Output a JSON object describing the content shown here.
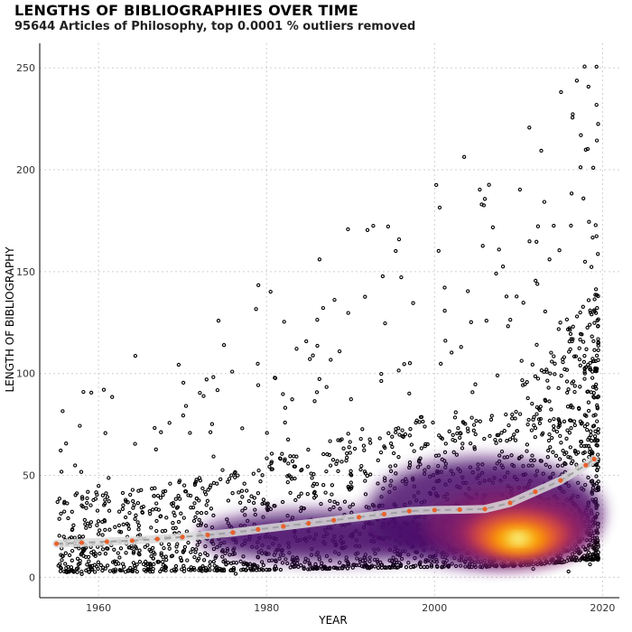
{
  "chart_data": {
    "type": "scatter",
    "title": "LENGTHS OF BIBLIOGRAPHIES OVER TIME",
    "subtitle": "95644 Articles of Philosophy, top 0.0001 % outliers removed",
    "xlabel": "YEAR",
    "ylabel": "LENGTH OF BIBLIOGRAPHY",
    "xlim": [
      1953,
      2022
    ],
    "ylim": [
      -10,
      262
    ],
    "x_ticks": [
      1960,
      1980,
      2000,
      2020
    ],
    "y_ticks": [
      0,
      50,
      100,
      150,
      200,
      250
    ],
    "grid": true,
    "point_color": "#000000",
    "density_colors": [
      "#1b0c41",
      "#4a0c6b",
      "#781c6d",
      "#a52c60",
      "#cf4446",
      "#ed6925",
      "#fb9b06",
      "#f7d13d",
      "#fcffa4"
    ],
    "series": [
      {
        "x": [
          1955,
          1958,
          1961,
          1964,
          1967,
          1970,
          1973,
          1976,
          1979,
          1982,
          1985,
          1988,
          1991,
          1994,
          1997,
          2000,
          2003,
          2006,
          2009,
          2012,
          2015,
          2018,
          2019
        ],
        "y": [
          16.5,
          17,
          17.5,
          18,
          18.8,
          19.8,
          20.8,
          22,
          23.5,
          25,
          26.5,
          28,
          29.5,
          31,
          32.5,
          33,
          33.2,
          33.5,
          36.5,
          42,
          47.5,
          55,
          58
        ]
      }
    ]
  }
}
